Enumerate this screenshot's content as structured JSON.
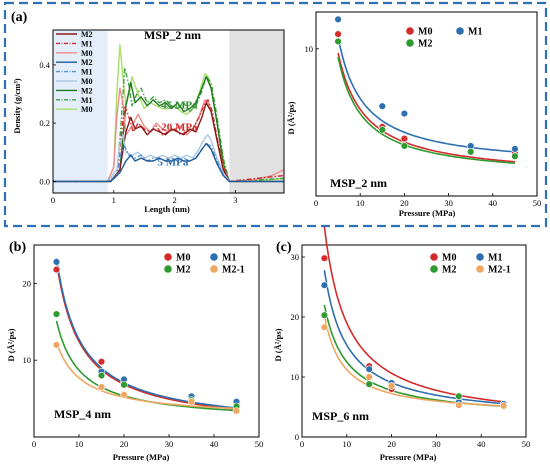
{
  "figure": {
    "panel_labels": [
      "(a)",
      "(b)",
      "(c)"
    ],
    "colors": {
      "M0": "#d32b2b",
      "M1": "#2e6fb0",
      "M2": "#2f9a2f",
      "M2-1": "#f0a660",
      "frame": "#2f6fb3"
    }
  },
  "chart_data": [
    {
      "id": "density",
      "type": "line",
      "title": "MSP_2 nm",
      "xlabel": "Length (nm)",
      "ylabel": "Density (g/cm³)",
      "xlim": [
        0,
        3.8
      ],
      "ylim": [
        -0.04,
        0.52
      ],
      "xticks": [
        0,
        1,
        2,
        3
      ],
      "yticks": [
        0.0,
        0.2,
        0.4
      ],
      "shaded_regions": [
        {
          "x": [
            0,
            0.9
          ],
          "color": "#e3eefa"
        },
        {
          "x": [
            2.9,
            3.8
          ],
          "color": "#e1e1e1"
        }
      ],
      "annotations": [
        {
          "text": "45 MPa",
          "x": 1.78,
          "y": 0.25,
          "color": "#2f8a2f"
        },
        {
          "text": "20 MPa",
          "x": 1.78,
          "y": 0.175,
          "color": "#d32b2b"
        },
        {
          "text": "5 MPa",
          "x": 1.72,
          "y": 0.055,
          "color": "#2e6fb0"
        }
      ],
      "legend_loc": "upper-left",
      "legend": [
        {
          "name": "M2",
          "color": "#8b1a1a",
          "style": "solid"
        },
        {
          "name": "M1",
          "color": "#d32b2b",
          "style": "dashdot"
        },
        {
          "name": "M0",
          "color": "#f08a8a",
          "style": "solid"
        },
        {
          "name": "M2",
          "color": "#1f5a9a",
          "style": "solid"
        },
        {
          "name": "M1",
          "color": "#5b93cf",
          "style": "dashdot"
        },
        {
          "name": "M0",
          "color": "#a9c8ea",
          "style": "solid"
        },
        {
          "name": "M2",
          "color": "#1f7a1f",
          "style": "solid"
        },
        {
          "name": "M1",
          "color": "#3ea33e",
          "style": "dashdot"
        },
        {
          "name": "M0",
          "color": "#a8e06a",
          "style": "solid"
        }
      ],
      "profiles": [
        {
          "color": "#a8e06a",
          "style": "solid",
          "x": [
            0,
            0.9,
            1.0,
            1.05,
            1.1,
            1.15,
            1.2,
            1.25,
            1.3,
            1.4,
            1.5,
            1.6,
            1.7,
            1.8,
            1.9,
            2.0,
            2.1,
            2.2,
            2.3,
            2.4,
            2.5,
            2.55,
            2.6,
            2.7,
            2.8,
            2.85,
            2.9,
            3.2,
            3.8
          ],
          "y": [
            0,
            0,
            0.05,
            0.3,
            0.47,
            0.36,
            0.26,
            0.3,
            0.36,
            0.3,
            0.25,
            0.27,
            0.26,
            0.25,
            0.25,
            0.26,
            0.24,
            0.23,
            0.25,
            0.3,
            0.37,
            0.36,
            0.32,
            0.2,
            0.08,
            0.02,
            0,
            0,
            0.01
          ]
        },
        {
          "color": "#3ea33e",
          "style": "dashdot",
          "x": [
            0,
            0.9,
            1.05,
            1.12,
            1.18,
            1.25,
            1.3,
            1.38,
            1.45,
            1.55,
            1.65,
            1.75,
            1.85,
            1.95,
            2.05,
            2.15,
            2.25,
            2.35,
            2.45,
            2.52,
            2.6,
            2.7,
            2.8,
            2.9,
            3.8
          ],
          "y": [
            0,
            0,
            0.02,
            0.2,
            0.39,
            0.33,
            0.26,
            0.3,
            0.32,
            0.27,
            0.29,
            0.27,
            0.28,
            0.26,
            0.25,
            0.27,
            0.24,
            0.26,
            0.31,
            0.36,
            0.34,
            0.22,
            0.08,
            0,
            0.01
          ]
        },
        {
          "color": "#1f7a1f",
          "style": "solid",
          "x": [
            0,
            0.95,
            1.1,
            1.2,
            1.28,
            1.35,
            1.45,
            1.55,
            1.65,
            1.75,
            1.85,
            1.95,
            2.05,
            2.15,
            2.25,
            2.35,
            2.45,
            2.52,
            2.6,
            2.7,
            2.8,
            2.9,
            3.8
          ],
          "y": [
            0,
            0,
            0.04,
            0.26,
            0.34,
            0.27,
            0.29,
            0.26,
            0.28,
            0.26,
            0.27,
            0.25,
            0.27,
            0.24,
            0.25,
            0.27,
            0.32,
            0.36,
            0.32,
            0.2,
            0.06,
            0,
            0
          ]
        },
        {
          "color": "#f08a8a",
          "style": "solid",
          "x": [
            0,
            0.9,
            1.0,
            1.05,
            1.1,
            1.15,
            1.2,
            1.3,
            1.4,
            1.5,
            1.6,
            1.7,
            1.8,
            1.9,
            2.0,
            2.1,
            2.2,
            2.3,
            2.4,
            2.5,
            2.55,
            2.6,
            2.7,
            2.8,
            2.9,
            3.2,
            3.6,
            3.8
          ],
          "y": [
            0,
            0,
            0.05,
            0.22,
            0.32,
            0.27,
            0.16,
            0.19,
            0.23,
            0.19,
            0.17,
            0.2,
            0.18,
            0.17,
            0.18,
            0.19,
            0.16,
            0.18,
            0.22,
            0.28,
            0.27,
            0.24,
            0.14,
            0.05,
            0,
            0,
            0.02,
            0.04
          ]
        },
        {
          "color": "#d32b2b",
          "style": "dashdot",
          "x": [
            0,
            0.9,
            1.05,
            1.12,
            1.18,
            1.25,
            1.32,
            1.4,
            1.5,
            1.6,
            1.7,
            1.8,
            1.9,
            2.0,
            2.1,
            2.2,
            2.3,
            2.4,
            2.5,
            2.55,
            2.62,
            2.7,
            2.8,
            2.9,
            3.8
          ],
          "y": [
            0,
            0,
            0.02,
            0.15,
            0.26,
            0.22,
            0.17,
            0.2,
            0.18,
            0.17,
            0.19,
            0.16,
            0.17,
            0.18,
            0.16,
            0.17,
            0.18,
            0.22,
            0.27,
            0.28,
            0.24,
            0.15,
            0.05,
            0,
            0.02
          ]
        },
        {
          "color": "#8b1a1a",
          "style": "solid",
          "x": [
            0,
            0.95,
            1.1,
            1.2,
            1.28,
            1.35,
            1.45,
            1.55,
            1.65,
            1.75,
            1.85,
            1.95,
            2.05,
            2.15,
            2.25,
            2.35,
            2.45,
            2.52,
            2.6,
            2.7,
            2.8,
            2.9,
            3.8
          ],
          "y": [
            0,
            0,
            0.04,
            0.17,
            0.22,
            0.18,
            0.19,
            0.16,
            0.18,
            0.17,
            0.16,
            0.18,
            0.17,
            0.16,
            0.18,
            0.17,
            0.22,
            0.27,
            0.24,
            0.14,
            0.04,
            0,
            0
          ]
        },
        {
          "color": "#a9c8ea",
          "style": "solid",
          "x": [
            0,
            0.9,
            1.05,
            1.1,
            1.15,
            1.2,
            1.3,
            1.4,
            1.5,
            1.6,
            1.7,
            1.8,
            1.9,
            2.0,
            2.1,
            2.2,
            2.3,
            2.4,
            2.5,
            2.55,
            2.6,
            2.7,
            2.8,
            2.9,
            3.8
          ],
          "y": [
            0,
            0,
            0.04,
            0.13,
            0.16,
            0.1,
            0.09,
            0.1,
            0.08,
            0.09,
            0.08,
            0.09,
            0.08,
            0.09,
            0.08,
            0.09,
            0.08,
            0.11,
            0.15,
            0.16,
            0.14,
            0.08,
            0.03,
            0,
            0
          ]
        },
        {
          "color": "#5b93cf",
          "style": "dashdot",
          "x": [
            0,
            0.9,
            1.05,
            1.12,
            1.18,
            1.25,
            1.35,
            1.45,
            1.55,
            1.65,
            1.75,
            1.85,
            1.95,
            2.05,
            2.15,
            2.25,
            2.35,
            2.45,
            2.52,
            2.6,
            2.7,
            2.8,
            2.9,
            3.8
          ],
          "y": [
            0,
            0,
            0.02,
            0.1,
            0.12,
            0.09,
            0.08,
            0.09,
            0.07,
            0.08,
            0.08,
            0.07,
            0.08,
            0.07,
            0.08,
            0.07,
            0.08,
            0.11,
            0.13,
            0.12,
            0.07,
            0.02,
            0,
            0
          ]
        },
        {
          "color": "#1f5a9a",
          "style": "solid",
          "x": [
            0,
            0.95,
            1.1,
            1.2,
            1.28,
            1.35,
            1.45,
            1.55,
            1.65,
            1.75,
            1.85,
            1.95,
            2.05,
            2.15,
            2.25,
            2.35,
            2.45,
            2.52,
            2.6,
            2.7,
            2.8,
            2.9,
            3.8
          ],
          "y": [
            0,
            0,
            0.03,
            0.07,
            0.09,
            0.07,
            0.08,
            0.07,
            0.07,
            0.08,
            0.07,
            0.07,
            0.08,
            0.07,
            0.07,
            0.08,
            0.11,
            0.13,
            0.11,
            0.06,
            0.02,
            0,
            0
          ]
        }
      ]
    },
    {
      "id": "msp2",
      "type": "scatter",
      "title": "MSP_2 nm",
      "xlabel": "Pressure (MPa)",
      "ylabel": "D (Å²/ps)",
      "xlim": [
        0,
        50
      ],
      "ylim": [
        0,
        12.5
      ],
      "xticks": [
        0,
        10,
        20,
        30,
        40,
        50
      ],
      "yticks": [
        10
      ],
      "legend_loc": "top-right",
      "series": [
        {
          "name": "M0",
          "color": "#d32b2b",
          "x": [
            5,
            15,
            20,
            35,
            45
          ],
          "y": [
            11.0,
            4.7,
            3.9,
            3.1,
            2.9
          ]
        },
        {
          "name": "M1",
          "color": "#2e6fb0",
          "x": [
            5,
            15,
            20,
            35,
            45
          ],
          "y": [
            12.0,
            6.1,
            5.6,
            3.4,
            3.2
          ]
        },
        {
          "name": "M2",
          "color": "#2f9a2f",
          "x": [
            5,
            15,
            20,
            35,
            45
          ],
          "y": [
            10.5,
            4.5,
            3.4,
            3.0,
            2.7
          ]
        }
      ],
      "fits": [
        {
          "name": "M0",
          "color": "#d32b2b",
          "a": 52.0,
          "b": 1.1,
          "c": 1.2
        },
        {
          "name": "M1",
          "color": "#2e6fb0",
          "a": 50.0,
          "b": 0.6,
          "c": 1.9
        },
        {
          "name": "M2",
          "color": "#2f9a2f",
          "a": 47.0,
          "b": 0.7,
          "c": 1.2
        }
      ]
    },
    {
      "id": "msp4",
      "type": "scatter",
      "title": "MSP_4 nm",
      "xlabel": "Pressure (MPa)",
      "ylabel": "D (Å²/ps)",
      "xlim": [
        0,
        50
      ],
      "ylim": [
        0,
        25
      ],
      "xticks": [
        0,
        10,
        20,
        30,
        40,
        50
      ],
      "yticks": [
        10,
        20
      ],
      "legend_loc": "top-right",
      "series": [
        {
          "name": "M0",
          "color": "#d32b2b",
          "x": [
            5,
            15,
            20,
            35,
            45
          ],
          "y": [
            21.8,
            9.8,
            7.2,
            5.0,
            4.3
          ]
        },
        {
          "name": "M1",
          "color": "#2e6fb0",
          "x": [
            5,
            15,
            20,
            35,
            45
          ],
          "y": [
            22.8,
            8.5,
            7.5,
            5.3,
            4.6
          ]
        },
        {
          "name": "M2",
          "color": "#2f9a2f",
          "x": [
            5,
            15,
            20,
            35,
            45
          ],
          "y": [
            16.0,
            8.0,
            6.8,
            4.8,
            4.0
          ]
        },
        {
          "name": "M2-1",
          "color": "#f0a660",
          "x": [
            5,
            15,
            20,
            35,
            45
          ],
          "y": [
            12.0,
            6.5,
            5.5,
            4.6,
            3.4
          ]
        }
      ],
      "fits": [
        {
          "name": "M0",
          "color": "#d32b2b",
          "a": 120.0,
          "b": 0.5,
          "c": 1.0
        },
        {
          "name": "M1",
          "color": "#2e6fb0",
          "a": 122.0,
          "b": 0.5,
          "c": 1.1
        },
        {
          "name": "M2",
          "color": "#2f9a2f",
          "a": 70.0,
          "b": 0.3,
          "c": 1.9
        },
        {
          "name": "M2-1",
          "color": "#f0a660",
          "a": 55.0,
          "b": 0.6,
          "c": 2.5
        }
      ]
    },
    {
      "id": "msp6",
      "type": "scatter",
      "title": "MSP_6 nm",
      "xlabel": "Pressure (MPa)",
      "ylabel": "D (Å²/ps)",
      "xlim": [
        0,
        50
      ],
      "ylim": [
        0,
        32
      ],
      "xticks": [
        0,
        10,
        20,
        30,
        40,
        50
      ],
      "yticks": [
        0,
        10,
        20,
        30
      ],
      "legend_loc": "top-right",
      "series": [
        {
          "name": "M0",
          "color": "#d32b2b",
          "x": [
            5,
            15,
            20,
            35,
            45
          ],
          "y": [
            29.8,
            11.8,
            8.0,
            6.0,
            5.5
          ]
        },
        {
          "name": "M1",
          "color": "#2e6fb0",
          "x": [
            5,
            15,
            20,
            35,
            45
          ],
          "y": [
            25.3,
            11.3,
            9.0,
            5.8,
            5.5
          ]
        },
        {
          "name": "M2",
          "color": "#2f9a2f",
          "x": [
            5,
            15,
            20,
            35,
            45
          ],
          "y": [
            20.3,
            8.8,
            8.5,
            6.8,
            5.1
          ]
        },
        {
          "name": "M2-1",
          "color": "#f0a660",
          "x": [
            5,
            15,
            20,
            35,
            45
          ],
          "y": [
            18.3,
            10.0,
            8.5,
            5.3,
            5.2
          ]
        }
      ],
      "fits": [
        {
          "name": "M0",
          "color": "#d32b2b",
          "a": 175.0,
          "b": 0.3,
          "c": 2.0
        },
        {
          "name": "M1",
          "color": "#2e6fb0",
          "a": 125.0,
          "b": 0.0,
          "c": 2.8
        },
        {
          "name": "M2",
          "color": "#2f9a2f",
          "a": 95.0,
          "b": 0.0,
          "c": 3.0
        },
        {
          "name": "M2-1",
          "color": "#f0a660",
          "a": 70.0,
          "b": -0.8,
          "c": 3.6
        }
      ]
    }
  ]
}
